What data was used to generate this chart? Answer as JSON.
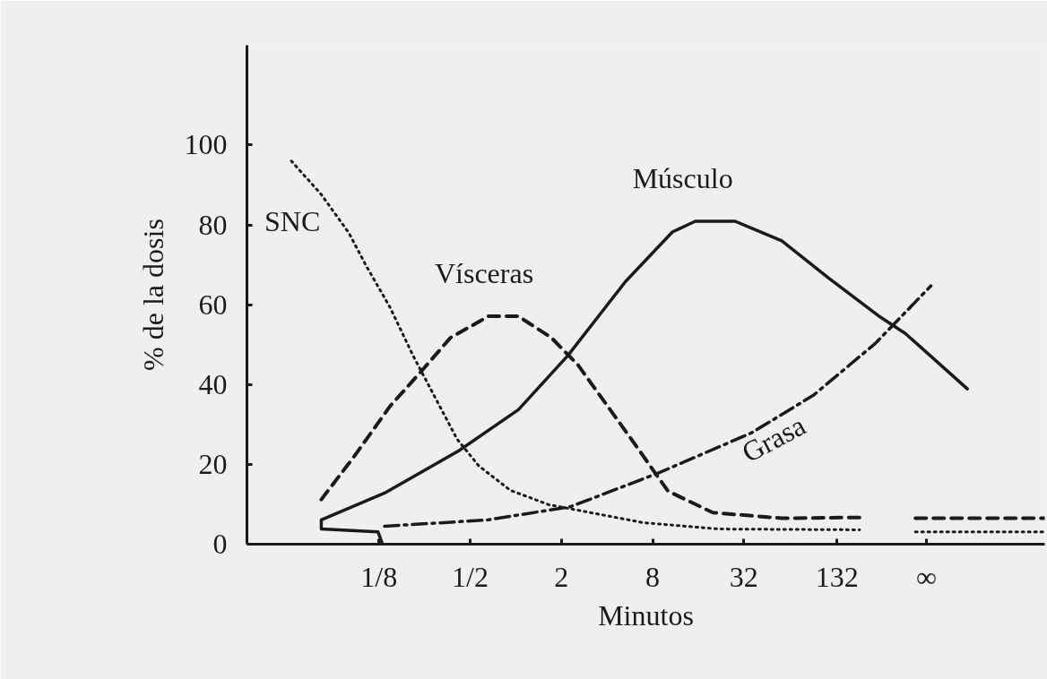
{
  "chart_data": {
    "type": "line",
    "xlabel": "Minutos",
    "ylabel": "% de la dosis",
    "log": "x",
    "xlim": [
      0.0168,
      3100
    ],
    "ylim": [
      0,
      125
    ],
    "xticks": [
      {
        "value": 0.125,
        "label": "1/8"
      },
      {
        "value": 0.5,
        "label": "1/2"
      },
      2,
      8,
      32,
      132,
      {
        "value": 512,
        "label": "∞"
      }
    ],
    "yticks": [
      0,
      20,
      40,
      60,
      80,
      100
    ],
    "grid": false,
    "series": [
      {
        "name": "SNC",
        "color": "#1a1a1a",
        "line_style": "dotted",
        "x": [
          0.033,
          0.052,
          0.079,
          0.103,
          0.148,
          0.21,
          0.28,
          0.41,
          0.57,
          0.92,
          1.65,
          6.9,
          22,
          186,
          294,
          434,
          3100
        ],
        "values": [
          96,
          87.6,
          78,
          69.7,
          59.3,
          47.2,
          38.2,
          26.3,
          19.6,
          13.5,
          9.9,
          5.4,
          3.8,
          3.6,
          null,
          3.1,
          3.1
        ]
      },
      {
        "name": "Vísceras",
        "color": "#1a1a1a",
        "line_style": "dashed",
        "x": [
          0.052,
          0.085,
          0.148,
          0.23,
          0.37,
          0.66,
          1.04,
          1.72,
          2.57,
          5.1,
          6.2,
          10.1,
          20,
          57,
          186,
          294,
          434,
          3100
        ],
        "values": [
          11.2,
          21.8,
          34.6,
          42.7,
          51.7,
          57.1,
          57.1,
          51.7,
          44.9,
          29.2,
          24.7,
          13.3,
          7.9,
          6.5,
          6.7,
          null,
          6.5,
          6.5
        ]
      },
      {
        "name": "Músculo",
        "color": "#1a1a1a",
        "line_style": "solid",
        "x": [
          0.132,
          0.123,
          0.052,
          0.052,
          0.136,
          0.42,
          1.04,
          2.2,
          5.3,
          10.8,
          15.3,
          28,
          57,
          116,
          246,
          372,
          956
        ],
        "values": [
          0,
          3.1,
          3.8,
          6.1,
          12.8,
          23.4,
          33.7,
          47.2,
          65.8,
          78.2,
          80.9,
          80.9,
          76,
          66.7,
          57.3,
          52.8,
          38.9
        ]
      },
      {
        "name": "Grasa",
        "color": "#1a1a1a",
        "line_style": "dashdot",
        "x": [
          0.136,
          0.66,
          2.3,
          8.7,
          36,
          92,
          236,
          549
        ],
        "values": [
          4.5,
          6.1,
          9.4,
          17.8,
          27.9,
          37.3,
          50.3,
          64.7
        ]
      }
    ]
  }
}
